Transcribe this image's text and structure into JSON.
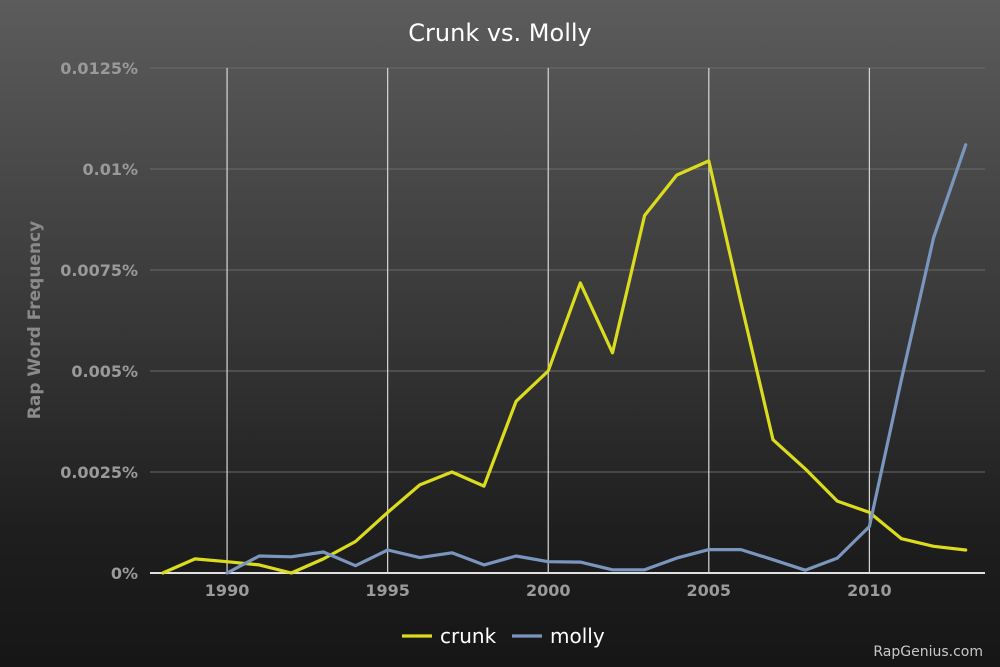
{
  "chart_data": {
    "type": "line",
    "title": "Crunk vs. Molly",
    "ylabel": "Rap Word Frequency",
    "xlabel": "",
    "xlim": [
      1987.6,
      2013.6
    ],
    "ylim": [
      0,
      0.0125
    ],
    "x_ticks": [
      1990,
      1995,
      2000,
      2005,
      2010
    ],
    "x_tick_labels": [
      "1990",
      "1995",
      "2000",
      "2005",
      "2010"
    ],
    "y_ticks": [
      0,
      0.0025,
      0.005,
      0.0075,
      0.01,
      0.0125
    ],
    "y_tick_labels": [
      "0%",
      "0.0025%",
      "0.005%",
      "0.0075%",
      "0.01%",
      "0.0125%"
    ],
    "grid": "vertical",
    "legend": "bottom-center",
    "x": [
      1988,
      1989,
      1990,
      1991,
      1992,
      1993,
      1994,
      1995,
      1996,
      1997,
      1998,
      1999,
      2000,
      2001,
      2002,
      2003,
      2004,
      2005,
      2006,
      2007,
      2008,
      2009,
      2010,
      2011,
      2012,
      2013
    ],
    "series": [
      {
        "name": "crunk",
        "color": "#dcdc1e",
        "x": [
          1988,
          1989,
          1990,
          1991,
          1992,
          1993,
          1994,
          1995,
          1996,
          1997,
          1998,
          1999,
          2000,
          2001,
          2002,
          2003,
          2004,
          2005,
          2006,
          2007,
          2008,
          2009,
          2010,
          2011,
          2012,
          2013
        ],
        "values": [
          0.0,
          0.00035,
          0.00028,
          0.0002,
          0.0,
          0.00035,
          0.00078,
          0.0015,
          0.00218,
          0.0025,
          0.00215,
          0.00425,
          0.005,
          0.00718,
          0.00545,
          0.00885,
          0.00985,
          0.0102,
          0.0067,
          0.0033,
          0.00258,
          0.00178,
          0.0015,
          0.00085,
          0.00066,
          0.00057
        ]
      },
      {
        "name": "molly",
        "color": "#7b96be",
        "x": [
          1990,
          1991,
          1992,
          1993,
          1994,
          1995,
          1996,
          1997,
          1998,
          1999,
          2000,
          2001,
          2002,
          2003,
          2004,
          2005,
          2006,
          2007,
          2008,
          2009,
          2010,
          2011,
          2012,
          2013
        ],
        "values": [
          0.0,
          0.00042,
          0.0004,
          0.00052,
          0.00018,
          0.00057,
          0.00038,
          0.0005,
          0.0002,
          0.00042,
          0.00028,
          0.00027,
          8e-05,
          8e-05,
          0.00037,
          0.00058,
          0.00058,
          0.00033,
          7e-05,
          0.00037,
          0.00115,
          0.0048,
          0.0083,
          0.0106
        ]
      }
    ]
  },
  "watermark": "RapGenius.com"
}
